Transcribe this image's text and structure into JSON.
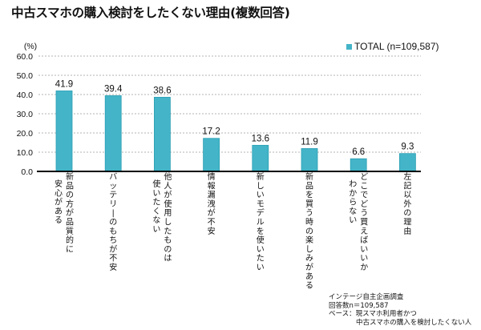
{
  "chart_data": {
    "type": "bar",
    "title": "中古スマホの購入検討をしたくない理由(複数回答)",
    "ylabel": "(%)",
    "xlabel": "",
    "ylim": [
      0,
      60
    ],
    "yticks": [
      "0.0",
      "10.0",
      "20.0",
      "30.0",
      "40.0",
      "50.0",
      "60.0"
    ],
    "grid": true,
    "legend_position": "top-right",
    "categories": [
      [
        "新品の方が品質的に",
        "安心がある"
      ],
      [
        "バッテリーのもちが不安"
      ],
      [
        "他人が使用したものは",
        "使いたくない"
      ],
      [
        "情報漏洩が不安"
      ],
      [
        "新しいモデルを使いたい"
      ],
      [
        "新品を買う時の楽しみがある"
      ],
      [
        "どこでどう買えばいいか",
        "わからない"
      ],
      [
        "左記以外の理由"
      ]
    ],
    "series": [
      {
        "name": "TOTAL (n=109,587)",
        "color": "#44b4c8",
        "values": [
          41.9,
          39.4,
          38.6,
          17.2,
          13.6,
          11.9,
          6.6,
          9.3
        ],
        "labels": [
          "41.9",
          "39.4",
          "38.6",
          "17.2",
          "13.6",
          "11.9",
          "6.6",
          "9.3"
        ]
      }
    ]
  },
  "footnote": [
    "インテージ自主企画調査",
    "回答数n＝109,587",
    "ベース：現スマホ利用者かつ",
    "　　　　中古スマホの購入を検討したくない人"
  ]
}
